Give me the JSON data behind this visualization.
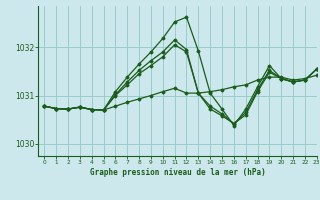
{
  "title": "Graphe pression niveau de la mer (hPa)",
  "bg_color": "#cce8ec",
  "grid_color": "#99cccc",
  "line_color": "#1a5c1a",
  "xlim": [
    -0.5,
    23
  ],
  "ylim": [
    1029.75,
    1032.85
  ],
  "yticks": [
    1030,
    1031,
    1032
  ],
  "xticks": [
    0,
    1,
    2,
    3,
    4,
    5,
    6,
    7,
    8,
    9,
    10,
    11,
    12,
    13,
    14,
    15,
    16,
    17,
    18,
    19,
    20,
    21,
    22,
    23
  ],
  "series": [
    [
      1030.78,
      1030.73,
      1030.72,
      1030.76,
      1030.71,
      1030.7,
      1030.78,
      1030.86,
      1030.93,
      1031.0,
      1031.08,
      1031.15,
      1031.05,
      1031.05,
      1031.08,
      1031.12,
      1031.18,
      1031.22,
      1031.32,
      1031.38,
      1031.38,
      1031.32,
      1031.35,
      1031.42
    ],
    [
      1030.78,
      1030.73,
      1030.72,
      1030.76,
      1030.71,
      1030.7,
      1031.0,
      1031.22,
      1031.45,
      1031.62,
      1031.8,
      1032.05,
      1031.9,
      1031.05,
      1030.72,
      1030.58,
      1030.42,
      1030.6,
      1031.08,
      1031.48,
      1031.35,
      1031.28,
      1031.32,
      1031.55
    ],
    [
      1030.78,
      1030.73,
      1030.72,
      1030.76,
      1030.71,
      1030.7,
      1031.08,
      1031.38,
      1031.65,
      1031.9,
      1032.18,
      1032.52,
      1032.62,
      1031.92,
      1031.05,
      1030.72,
      1030.38,
      1030.72,
      1031.18,
      1031.62,
      1031.35,
      1031.28,
      1031.32,
      1031.55
    ],
    [
      1030.78,
      1030.73,
      1030.72,
      1030.76,
      1030.71,
      1030.7,
      1031.02,
      1031.28,
      1031.52,
      1031.72,
      1031.9,
      1032.15,
      1031.95,
      1031.05,
      1030.78,
      1030.62,
      1030.42,
      1030.65,
      1031.12,
      1031.52,
      1031.35,
      1031.28,
      1031.32,
      1031.55
    ]
  ]
}
